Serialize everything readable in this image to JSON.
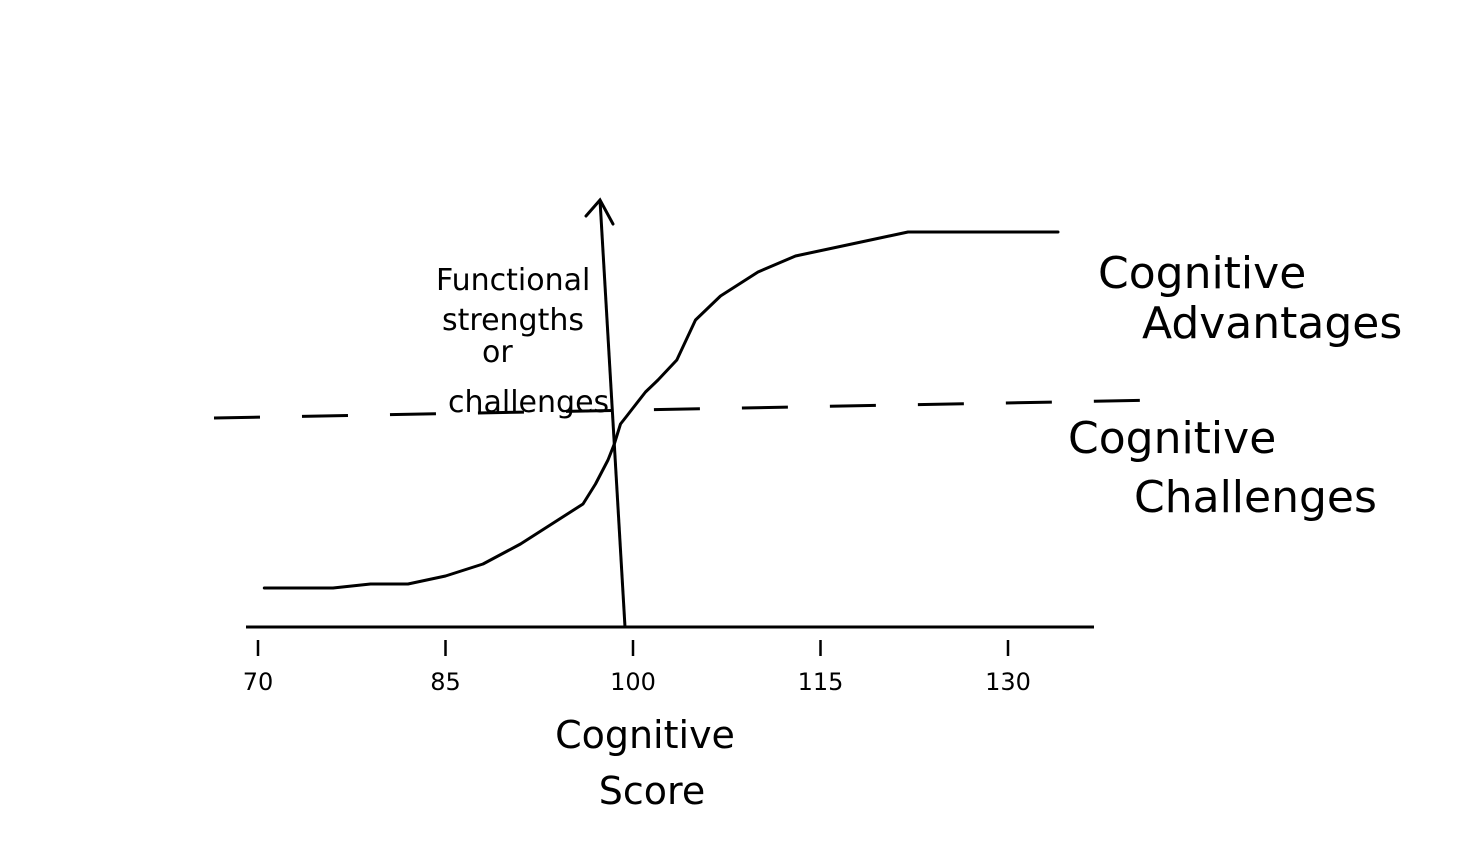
{
  "chart_data": {
    "type": "line",
    "title": "",
    "xlabel": [
      "Cognitive",
      "Score"
    ],
    "ylabel": [
      "Functional",
      "strengths",
      "or",
      "challenges"
    ],
    "x_ticks": [
      70,
      85,
      100,
      115,
      130
    ],
    "xlim": [
      70,
      135
    ],
    "ylim": [
      0,
      1
    ],
    "reference_line": {
      "style": "dashed",
      "y": 0.5
    },
    "regions": {
      "above": [
        "Cognitive",
        "Advantages"
      ],
      "below": [
        "Cognitive",
        "Challenges"
      ]
    },
    "series": [
      {
        "x": [
          70.5,
          73,
          76,
          79,
          82,
          85,
          88,
          91,
          94,
          96,
          97,
          98,
          98.5,
          99,
          99.5,
          100,
          101,
          102,
          103.5,
          105,
          107,
          110,
          113,
          116,
          119,
          122,
          125,
          128,
          131,
          134
        ],
        "y": [
          0.06,
          0.06,
          0.06,
          0.07,
          0.07,
          0.09,
          0.12,
          0.17,
          0.23,
          0.27,
          0.32,
          0.38,
          0.42,
          0.47,
          0.49,
          0.51,
          0.55,
          0.58,
          0.63,
          0.73,
          0.79,
          0.85,
          0.89,
          0.91,
          0.93,
          0.95,
          0.95,
          0.95,
          0.95,
          0.95
        ]
      }
    ]
  }
}
